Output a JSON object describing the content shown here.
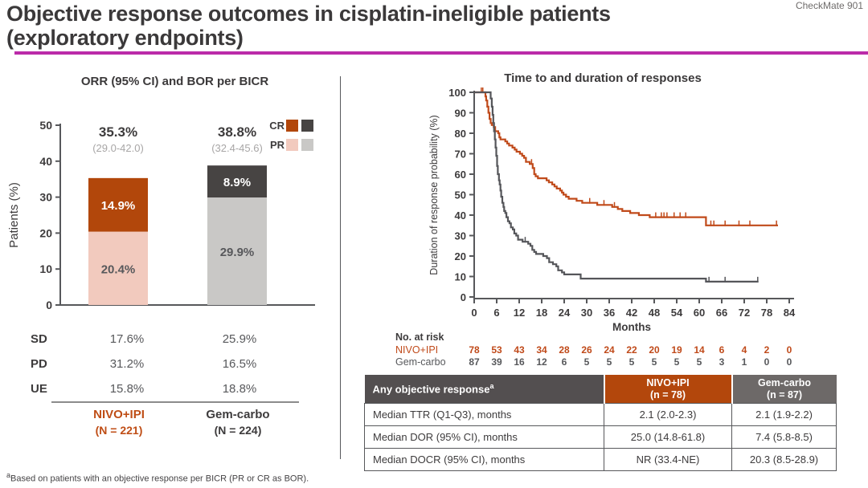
{
  "header": {
    "title_line1": "Objective response outcomes in cisplatin-ineligible patients",
    "title_line2": "(exploratory endpoints)",
    "badge": "CheckMate 901"
  },
  "footnote": {
    "sup": "a",
    "text": "Based on patients with an objective response per BICR (PR or CR as BOR)."
  },
  "colors": {
    "accent_rule": "#bb2ba9",
    "nivo_orange": "#c04a1a",
    "bar_cr_orange": "#b2470b",
    "bar_pr_pink": "#f2cabe",
    "bar_cr_gray": "#474443",
    "bar_pr_gray": "#c9c8c6",
    "axis_gray": "#57585b",
    "ci_gray": "#a8a6a6",
    "header_dark": "#534f50",
    "header_orange": "#b3470c",
    "header_gray": "#6d6968"
  },
  "left_panel": {
    "chart_title": "ORR (95% CI) and BOR per BICR",
    "bor_rows": [
      {
        "label": "SD",
        "nivo": "17.6%",
        "gem": "25.9%"
      },
      {
        "label": "PD",
        "nivo": "31.2%",
        "gem": "16.5%"
      },
      {
        "label": "UE",
        "nivo": "15.8%",
        "gem": "18.8%"
      }
    ],
    "groups": [
      {
        "name": "NIVO+IPI",
        "n": "(N = 221)",
        "color": "#bf4d15"
      },
      {
        "name": "Gem-carbo",
        "n": "(N = 224)",
        "color": "#3d3b3c"
      }
    ]
  },
  "right_panel": {
    "chart_title": "Time to and duration of responses",
    "risk": {
      "label": "No. at risk",
      "rows": [
        {
          "name": "NIVO+IPI",
          "color": "#c04a1a",
          "values": [
            "78",
            "53",
            "43",
            "34",
            "28",
            "26",
            "24",
            "22",
            "20",
            "19",
            "14",
            "6",
            "4",
            "2",
            "0"
          ]
        },
        {
          "name": "Gem-carbo",
          "color": "#57585b",
          "values": [
            "87",
            "39",
            "16",
            "12",
            "6",
            "5",
            "5",
            "5",
            "5",
            "5",
            "5",
            "3",
            "1",
            "0",
            "0"
          ]
        }
      ]
    },
    "table": {
      "header": {
        "label": "Any objective response",
        "sup": "a",
        "col2_line1": "NIVO+IPI",
        "col2_line2": "(n = 78)",
        "col3_line1": "Gem-carbo",
        "col3_line2": "(n = 87)"
      },
      "rows": [
        [
          "Median TTR (Q1-Q3), months",
          "2.1 (2.0-2.3)",
          "2.1 (1.9-2.2)"
        ],
        [
          "Median DOR (95% CI), months",
          "25.0 (14.8-61.8)",
          "7.4 (5.8-8.5)"
        ],
        [
          "Median DOCR (95% CI), months",
          "NR (33.4-NE)",
          "20.3 (8.5-28.9)"
        ]
      ]
    }
  },
  "chart_data": [
    {
      "id": "orr_bor_bar",
      "type": "bar",
      "stacked": true,
      "title": "ORR (95% CI) and BOR per BICR",
      "xlabel": "",
      "ylabel": "Patients (%)",
      "ylim": [
        0,
        50
      ],
      "yticks": [
        0,
        10,
        20,
        30,
        40,
        50
      ],
      "categories": [
        "NIVO+IPI (N = 221)",
        "Gem-carbo (N = 224)"
      ],
      "series": [
        {
          "name": "PR",
          "values": [
            20.4,
            29.9
          ],
          "colors": [
            "#f2cabe",
            "#c9c8c6"
          ],
          "label_colors": [
            "#57585b",
            "#57585b"
          ],
          "labels": [
            "20.4%",
            "29.9%"
          ]
        },
        {
          "name": "CR",
          "values": [
            14.9,
            8.9
          ],
          "colors": [
            "#b2470b",
            "#474443"
          ],
          "label_colors": [
            "#ffffff",
            "#ffffff"
          ],
          "labels": [
            "14.9%",
            "8.9%"
          ]
        }
      ],
      "totals": [
        {
          "value": "35.3%",
          "ci": "(29.0-42.0)"
        },
        {
          "value": "38.8%",
          "ci": "(32.4-45.6)"
        }
      ],
      "legend": {
        "position": "top-right",
        "rows": [
          {
            "label": "CR",
            "colors": [
              "#b2470b",
              "#474443"
            ]
          },
          {
            "label": "PR",
            "colors": [
              "#f2cabe",
              "#c9c8c6"
            ]
          }
        ]
      }
    },
    {
      "id": "km_time_duration",
      "type": "line",
      "step": true,
      "title": "Time to and duration of responses",
      "xlabel": "Months",
      "ylabel": "Duration of response probability (%)",
      "xlim": [
        0,
        84
      ],
      "xticks": [
        0,
        6,
        12,
        18,
        24,
        30,
        36,
        42,
        48,
        54,
        60,
        66,
        72,
        78,
        84
      ],
      "ylim": [
        0,
        100
      ],
      "yticks": [
        0,
        10,
        20,
        30,
        40,
        50,
        60,
        70,
        80,
        90,
        100
      ],
      "grid": false,
      "series": [
        {
          "name": "NIVO+IPI",
          "color": "#c04a1a",
          "points": [
            [
              0,
              100
            ],
            [
              2.6,
              100
            ],
            [
              3.0,
              98
            ],
            [
              3.2,
              96
            ],
            [
              3.5,
              93
            ],
            [
              3.8,
              90
            ],
            [
              4.1,
              87
            ],
            [
              4.4,
              85
            ],
            [
              4.7,
              84
            ],
            [
              5.2,
              83
            ],
            [
              5.6,
              81
            ],
            [
              6.4,
              80
            ],
            [
              6.7,
              78
            ],
            [
              7.0,
              77
            ],
            [
              8.3,
              76
            ],
            [
              8.8,
              75
            ],
            [
              9.3,
              74
            ],
            [
              10.2,
              73
            ],
            [
              10.8,
              72
            ],
            [
              11.3,
              71
            ],
            [
              12.2,
              70
            ],
            [
              12.8,
              69
            ],
            [
              13.3,
              68
            ],
            [
              13.8,
              66
            ],
            [
              14.8,
              65
            ],
            [
              15.6,
              63
            ],
            [
              16.0,
              60
            ],
            [
              16.4,
              59
            ],
            [
              17.0,
              58
            ],
            [
              19.3,
              57
            ],
            [
              19.9,
              56
            ],
            [
              20.8,
              55
            ],
            [
              21.4,
              54
            ],
            [
              22.0,
              53
            ],
            [
              22.9,
              52
            ],
            [
              23.4,
              51
            ],
            [
              23.8,
              50
            ],
            [
              24.5,
              49
            ],
            [
              25.2,
              48
            ],
            [
              27.3,
              47
            ],
            [
              28.8,
              46
            ],
            [
              32.8,
              45
            ],
            [
              36.8,
              44
            ],
            [
              38.3,
              43
            ],
            [
              39.5,
              42
            ],
            [
              41.6,
              41
            ],
            [
              43.9,
              40
            ],
            [
              46.8,
              39
            ],
            [
              61.8,
              35
            ],
            [
              81,
              35
            ]
          ],
          "censors": [
            [
              1.9,
              100
            ],
            [
              2.3,
              100
            ],
            [
              15.3,
              65
            ],
            [
              30.8,
              46
            ],
            [
              34.6,
              45
            ],
            [
              37.4,
              44
            ],
            [
              48.4,
              39
            ],
            [
              49.9,
              39
            ],
            [
              50.6,
              39
            ],
            [
              51.4,
              39
            ],
            [
              53.3,
              39
            ],
            [
              54.9,
              39
            ],
            [
              56.4,
              39
            ],
            [
              63.1,
              35
            ],
            [
              63.9,
              35
            ],
            [
              66.9,
              35
            ],
            [
              70.6,
              35
            ],
            [
              73.5,
              35
            ],
            [
              80.6,
              35
            ]
          ]
        },
        {
          "name": "Gem-carbo",
          "color": "#55565a",
          "points": [
            [
              0,
              100
            ],
            [
              4.1,
              100
            ],
            [
              4.4,
              97
            ],
            [
              4.7,
              93
            ],
            [
              4.9,
              89
            ],
            [
              5.1,
              85
            ],
            [
              5.3,
              81
            ],
            [
              5.5,
              77
            ],
            [
              5.7,
              73
            ],
            [
              5.9,
              69
            ],
            [
              6.1,
              64
            ],
            [
              6.3,
              60
            ],
            [
              6.6,
              57
            ],
            [
              6.8,
              55
            ],
            [
              7.0,
              52
            ],
            [
              7.2,
              49
            ],
            [
              7.5,
              46
            ],
            [
              7.8,
              44
            ],
            [
              8.0,
              42
            ],
            [
              8.3,
              41
            ],
            [
              8.6,
              39
            ],
            [
              9.0,
              37
            ],
            [
              9.4,
              36
            ],
            [
              9.8,
              34
            ],
            [
              10.3,
              33
            ],
            [
              10.7,
              31
            ],
            [
              11.2,
              30
            ],
            [
              11.7,
              28
            ],
            [
              12.9,
              27
            ],
            [
              14.4,
              26
            ],
            [
              15.0,
              25
            ],
            [
              15.5,
              23
            ],
            [
              16.0,
              22
            ],
            [
              16.5,
              21
            ],
            [
              18.4,
              20
            ],
            [
              19.4,
              19
            ],
            [
              20.0,
              17
            ],
            [
              21.0,
              16
            ],
            [
              21.9,
              15
            ],
            [
              22.4,
              13
            ],
            [
              23.4,
              12
            ],
            [
              24.0,
              11
            ],
            [
              28.4,
              9
            ],
            [
              61.8,
              7.5
            ],
            [
              75.8,
              7.5
            ]
          ],
          "censors": [
            [
              13.6,
              27
            ],
            [
              62.6,
              7.5
            ],
            [
              66.9,
              7.5
            ],
            [
              75.6,
              7.5
            ]
          ]
        }
      ]
    }
  ]
}
